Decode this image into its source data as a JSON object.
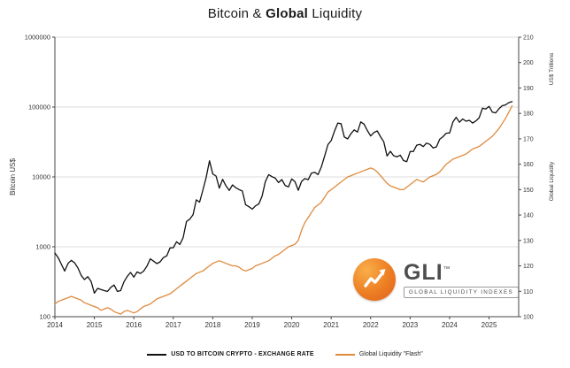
{
  "title": {
    "part1": "Bitcoin &",
    "part2": "Global",
    "part3": "Liquidity"
  },
  "legend": {
    "bitcoin": "USD TO BITCOIN CRYPTO - EXCHANGE RATE",
    "liquidity": "Global Liquidity \"Flash\""
  },
  "logo": {
    "name": "GLI",
    "tm": "™",
    "subtitle": "GLOBAL LIQUIDITY INDEXES"
  },
  "chart_data": {
    "type": "line",
    "title": "Bitcoin & Global Liquidity",
    "grid": "horizontal",
    "legend_position": "bottom",
    "x_axis": {
      "range": [
        2014,
        2025.75
      ],
      "ticks": [
        2014,
        2015,
        2016,
        2017,
        2018,
        2019,
        2020,
        2021,
        2022,
        2023,
        2024,
        2025
      ]
    },
    "left_axis": {
      "label": "Bitcoin US$",
      "scale": "log",
      "range": [
        100,
        1000000
      ],
      "ticks": [
        100,
        1000,
        10000,
        100000,
        1000000
      ],
      "tick_labels": [
        "100",
        "1000",
        "10000",
        "100000",
        "1000000"
      ]
    },
    "right_axis": {
      "label": "Global Liquidity",
      "unit_label": "US$ Trillions",
      "scale": "linear",
      "range": [
        100,
        210
      ],
      "tick_step": 10
    },
    "series": [
      {
        "name": "USD TO BITCOIN CRYPTO - EXCHANGE RATE",
        "axis": "left",
        "color": "#111111",
        "x_start": 2014,
        "x_step_months": 1,
        "values": [
          815,
          700,
          560,
          450,
          580,
          640,
          590,
          500,
          390,
          340,
          375,
          320,
          217,
          254,
          245,
          236,
          230,
          263,
          284,
          230,
          236,
          314,
          378,
          430,
          368,
          437,
          416,
          448,
          531,
          673,
          624,
          575,
          610,
          700,
          742,
          963,
          970,
          1180,
          1080,
          1350,
          2300,
          2480,
          2875,
          4700,
          4360,
          6450,
          9900,
          17000,
          11000,
          10300,
          6900,
          9240,
          7500,
          6400,
          7700,
          7000,
          6600,
          6300,
          4000,
          3740,
          3460,
          3850,
          4100,
          5320,
          8560,
          10800,
          10100,
          9600,
          8300,
          9150,
          7550,
          7200,
          9350,
          8550,
          6440,
          8620,
          9450,
          9140,
          11350,
          11650,
          10780,
          13800,
          19700,
          29000,
          33100,
          45100,
          58800,
          57750,
          37300,
          35000,
          41600,
          47100,
          43800,
          61300,
          57000,
          46200,
          38500,
          43200,
          45500,
          37650,
          31800,
          19900,
          23300,
          20050,
          19400,
          20500,
          17150,
          16550,
          23100,
          23150,
          28500,
          29250,
          27200,
          30450,
          29230,
          25930,
          26960,
          34650,
          37700,
          42250,
          42580,
          61150,
          71330,
          60630,
          67500,
          62680,
          64600,
          58970,
          63330,
          70200,
          96400,
          93400,
          102400,
          84350,
          82550,
          94200,
          104600,
          107100,
          115800,
          119500
        ]
      },
      {
        "name": "Global Liquidity \"Flash\"",
        "axis": "right",
        "color": "#df8a3d",
        "x_start": 2014,
        "x_step_months": 1,
        "values": [
          105,
          106,
          106.5,
          107,
          107.5,
          108,
          107.5,
          107,
          106.5,
          105.5,
          105,
          104.5,
          104,
          103.5,
          102.5,
          103,
          103.5,
          103,
          102,
          101.5,
          101,
          102,
          102.5,
          102,
          101.5,
          102,
          103,
          104,
          104.5,
          105,
          106,
          107,
          107.5,
          108,
          108.5,
          109,
          110,
          111,
          112,
          113,
          114,
          115,
          116,
          117,
          117.5,
          118,
          119,
          120,
          121,
          121.5,
          122,
          121.5,
          121,
          120.5,
          120,
          120,
          119.5,
          118.5,
          118,
          118.5,
          119,
          120,
          120.5,
          121,
          121.5,
          122,
          123,
          124,
          124.5,
          125.5,
          126.5,
          127.5,
          128,
          128.5,
          130,
          134,
          137,
          139,
          141,
          143,
          144,
          145,
          147,
          149,
          150,
          151,
          152,
          153,
          154,
          155,
          155.5,
          156,
          156.5,
          157,
          157.5,
          158,
          158.5,
          158,
          157,
          155.5,
          154,
          152.5,
          151.5,
          151,
          150.5,
          150,
          150,
          151,
          152,
          153,
          154,
          153.5,
          153,
          154,
          155,
          155.5,
          156,
          157,
          158.5,
          160,
          161,
          162,
          162.5,
          163,
          163.5,
          164,
          165,
          166,
          166.5,
          167,
          168,
          169,
          170,
          171,
          172.5,
          174,
          176,
          178,
          180.5,
          183
        ]
      }
    ]
  }
}
